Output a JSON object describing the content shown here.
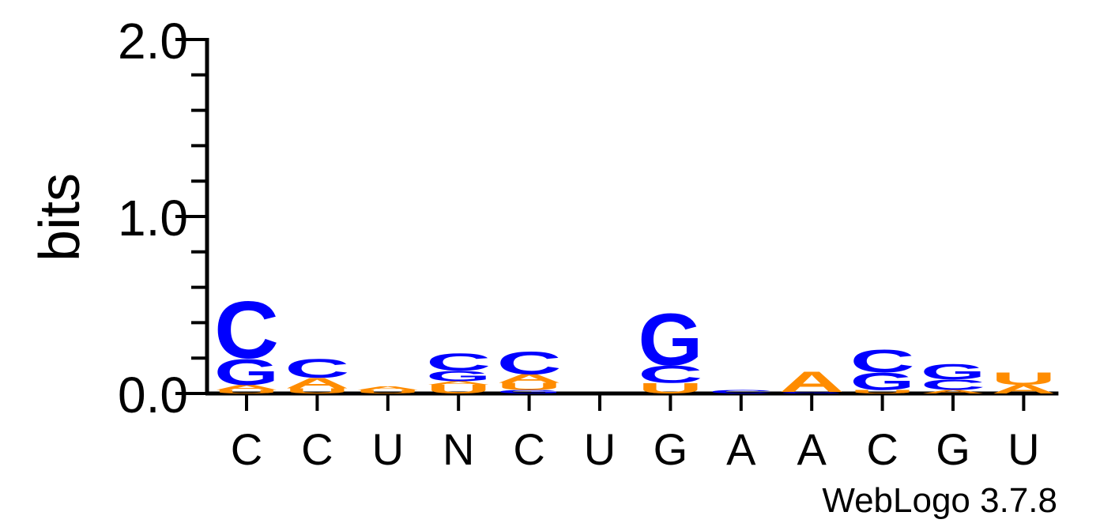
{
  "chart_data": {
    "type": "sequence-logo",
    "ylabel": "bits",
    "ylim": [
      0,
      2.0
    ],
    "yticks_labeled": [
      {
        "value": 0.0,
        "label": "0.0"
      },
      {
        "value": 1.0,
        "label": "1.0"
      },
      {
        "value": 2.0,
        "label": "2.0"
      }
    ],
    "ytick_step": 0.2,
    "colors": {
      "C": "#0000ff",
      "G": "#0000ff",
      "A": "#ff8c00",
      "U": "#ff8c00"
    },
    "positions": [
      {
        "label": "C",
        "stack": [
          {
            "letter": "U",
            "bits": 0.02
          },
          {
            "letter": "A",
            "bits": 0.03
          },
          {
            "letter": "G",
            "bits": 0.15
          },
          {
            "letter": "C",
            "bits": 0.33
          }
        ]
      },
      {
        "label": "C",
        "stack": [
          {
            "letter": "U",
            "bits": 0.03
          },
          {
            "letter": "A",
            "bits": 0.06
          },
          {
            "letter": "C",
            "bits": 0.11
          }
        ]
      },
      {
        "label": "U",
        "stack": [
          {
            "letter": "U",
            "bits": 0.02
          },
          {
            "letter": "A",
            "bits": 0.02
          }
        ]
      },
      {
        "label": "N",
        "stack": [
          {
            "letter": "U",
            "bits": 0.05
          },
          {
            "letter": "A",
            "bits": 0.02
          },
          {
            "letter": "G",
            "bits": 0.06
          },
          {
            "letter": "C",
            "bits": 0.1
          }
        ]
      },
      {
        "label": "C",
        "stack": [
          {
            "letter": "G",
            "bits": 0.02
          },
          {
            "letter": "U",
            "bits": 0.04
          },
          {
            "letter": "A",
            "bits": 0.05
          },
          {
            "letter": "C",
            "bits": 0.13
          }
        ]
      },
      {
        "label": "U",
        "stack": []
      },
      {
        "label": "G",
        "stack": [
          {
            "letter": "U",
            "bits": 0.06
          },
          {
            "letter": "C",
            "bits": 0.1
          },
          {
            "letter": "G",
            "bits": 0.3
          }
        ]
      },
      {
        "label": "A",
        "stack": [
          {
            "letter": "C",
            "bits": 0.02
          }
        ]
      },
      {
        "label": "A",
        "stack": [
          {
            "letter": "G",
            "bits": 0.01
          },
          {
            "letter": "A",
            "bits": 0.12
          }
        ]
      },
      {
        "label": "C",
        "stack": [
          {
            "letter": "U",
            "bits": 0.02
          },
          {
            "letter": "G",
            "bits": 0.1
          },
          {
            "letter": "C",
            "bits": 0.13
          }
        ]
      },
      {
        "label": "G",
        "stack": [
          {
            "letter": "A",
            "bits": 0.02
          },
          {
            "letter": "C",
            "bits": 0.06
          },
          {
            "letter": "G",
            "bits": 0.09
          }
        ]
      },
      {
        "label": "U",
        "stack": [
          {
            "letter": "A",
            "bits": 0.05
          },
          {
            "letter": "U",
            "bits": 0.07
          }
        ]
      }
    ]
  },
  "footer": {
    "credit": "WebLogo 3.7.8"
  }
}
